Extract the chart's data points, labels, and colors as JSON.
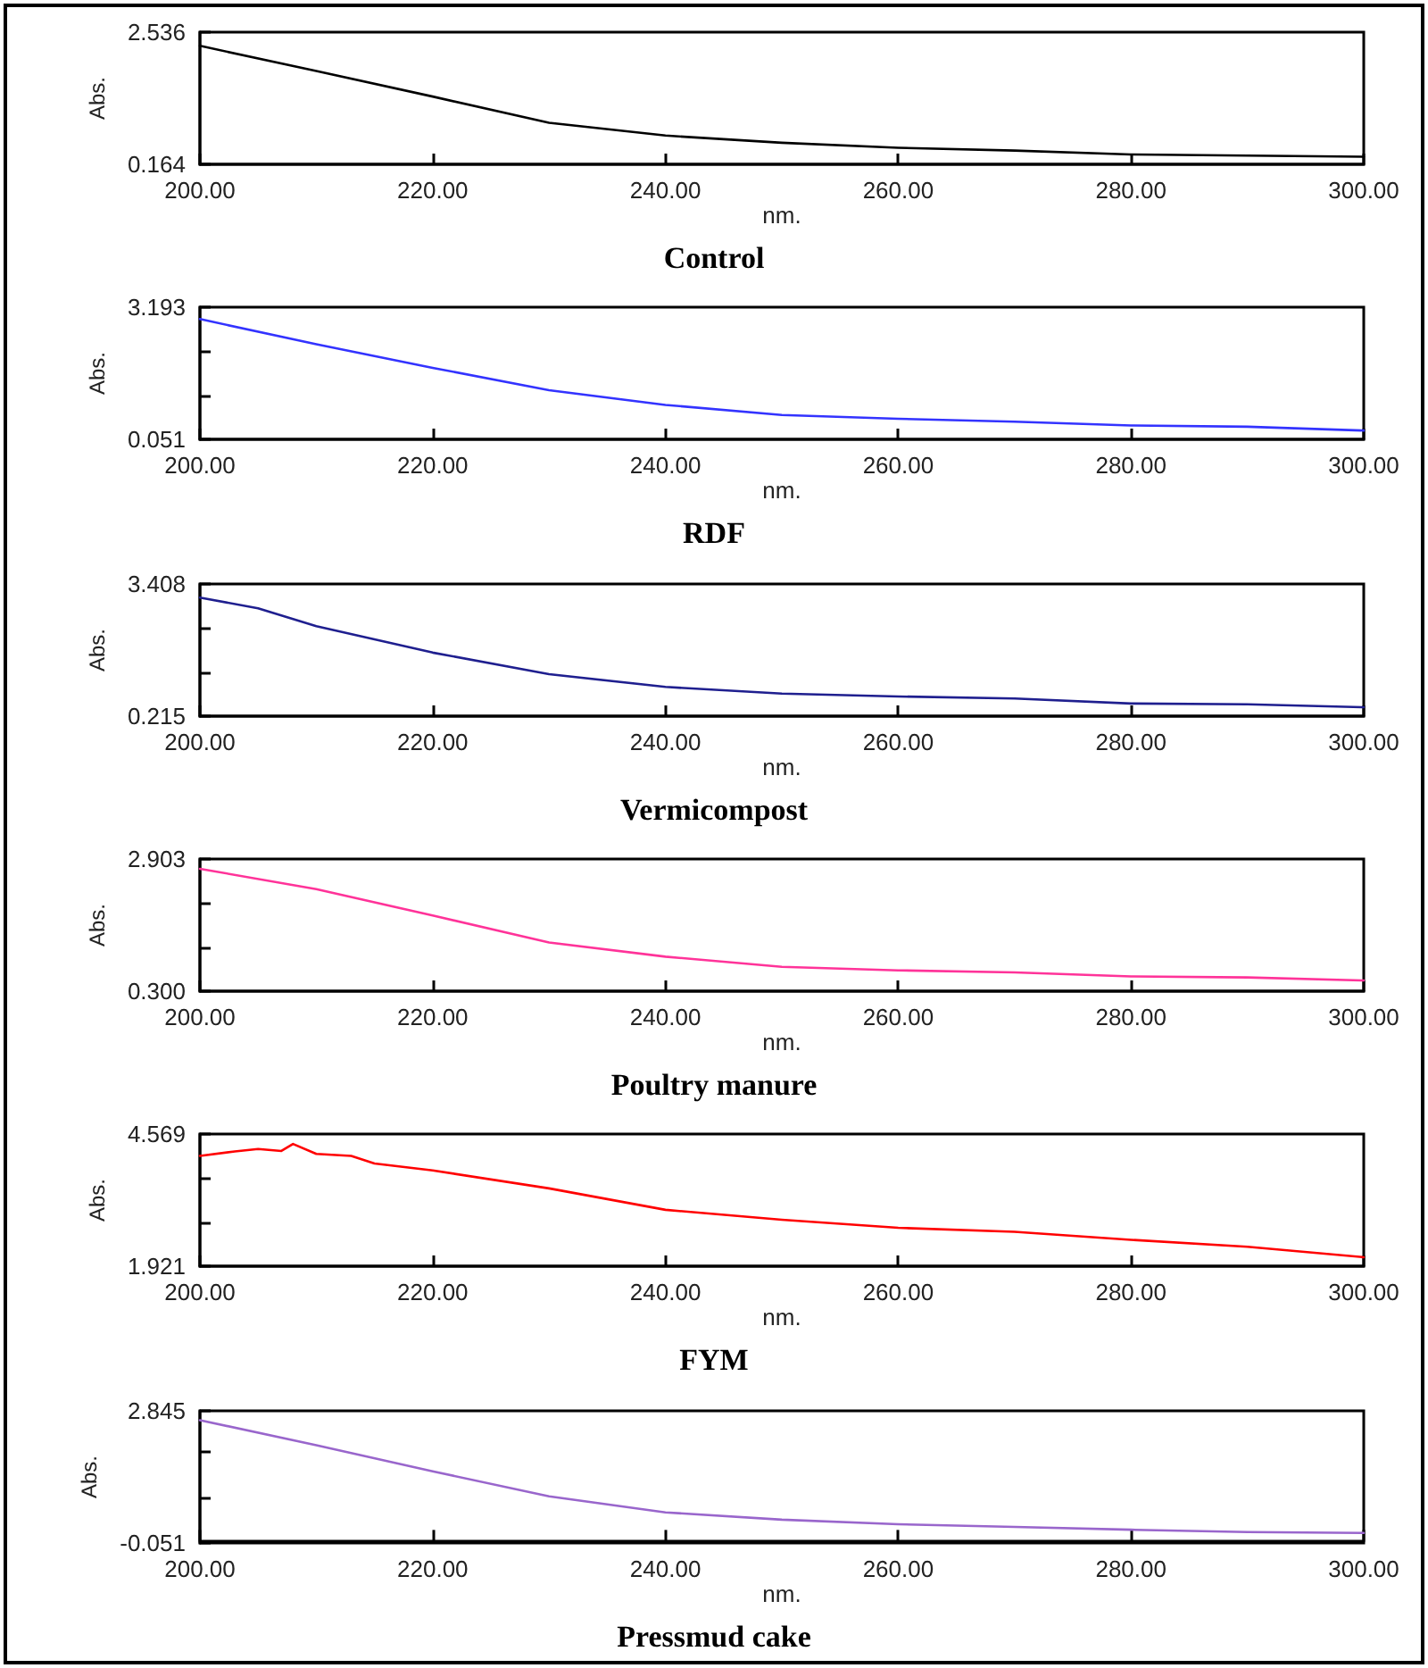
{
  "chart_data": [
    {
      "type": "line",
      "title": "Control",
      "xlabel": "nm.",
      "ylabel": "Abs.",
      "xlim": [
        200,
        300
      ],
      "xticks": [
        {
          "value": 200,
          "label": "200.00"
        },
        {
          "value": 220,
          "label": "220.00"
        },
        {
          "value": 240,
          "label": "240.00"
        },
        {
          "value": 260,
          "label": "260.00"
        },
        {
          "value": 280,
          "label": "280.00"
        },
        {
          "value": 300,
          "label": "300.00"
        }
      ],
      "ylim": [
        0.164,
        2.536
      ],
      "yticks": [
        0.164,
        2.536
      ],
      "grid": false,
      "x": [
        200,
        210,
        220,
        230,
        240,
        250,
        260,
        270,
        280,
        290,
        300
      ],
      "series": [
        {
          "color": "#000000",
          "values": [
            2.29,
            1.84,
            1.38,
            0.91,
            0.68,
            0.55,
            0.46,
            0.41,
            0.34,
            0.32,
            0.3
          ]
        }
      ]
    },
    {
      "type": "line",
      "title": "RDF",
      "xlabel": "nm.",
      "ylabel": "Abs.",
      "xlim": [
        200,
        300
      ],
      "xticks": [
        {
          "value": 200,
          "label": "200.00"
        },
        {
          "value": 220,
          "label": "220.00"
        },
        {
          "value": 240,
          "label": "240.00"
        },
        {
          "value": 260,
          "label": "260.00"
        },
        {
          "value": 280,
          "label": "280.00"
        },
        {
          "value": 300,
          "label": "300.00"
        }
      ],
      "ylim": [
        0.051,
        3.193
      ],
      "yticks": [
        0.051,
        {
          "value": 1.1,
          "label": null
        },
        {
          "value": 2.15,
          "label": null
        },
        3.193
      ],
      "grid": false,
      "x": [
        200,
        210,
        220,
        230,
        240,
        250,
        260,
        270,
        280,
        290,
        300
      ],
      "series": [
        {
          "color": "#3333ff",
          "values": [
            2.91,
            2.31,
            1.75,
            1.22,
            0.87,
            0.63,
            0.54,
            0.47,
            0.38,
            0.35,
            0.26
          ]
        }
      ]
    },
    {
      "type": "line",
      "title": "Vermicompost",
      "xlabel": "nm.",
      "ylabel": "Abs.",
      "xlim": [
        200,
        300
      ],
      "xticks": [
        {
          "value": 200,
          "label": "200.00"
        },
        {
          "value": 220,
          "label": "220.00"
        },
        {
          "value": 240,
          "label": "240.00"
        },
        {
          "value": 260,
          "label": "260.00"
        },
        {
          "value": 280,
          "label": "280.00"
        },
        {
          "value": 300,
          "label": "300.00"
        }
      ],
      "ylim": [
        0.215,
        3.408
      ],
      "yticks": [
        0.215,
        {
          "value": 1.28,
          "label": null
        },
        {
          "value": 2.34,
          "label": null
        },
        3.408
      ],
      "grid": false,
      "x": [
        200,
        205,
        210,
        220,
        230,
        240,
        250,
        260,
        270,
        280,
        290,
        300
      ],
      "series": [
        {
          "color": "#1f1f8f",
          "values": [
            3.08,
            2.82,
            2.39,
            1.75,
            1.23,
            0.92,
            0.76,
            0.69,
            0.64,
            0.52,
            0.5,
            0.43
          ]
        }
      ]
    },
    {
      "type": "line",
      "title": "Poultry manure",
      "xlabel": "nm.",
      "ylabel": "Abs.",
      "xlim": [
        200,
        300
      ],
      "xticks": [
        {
          "value": 200,
          "label": "200.00"
        },
        {
          "value": 220,
          "label": "220.00"
        },
        {
          "value": 240,
          "label": "240.00"
        },
        {
          "value": 260,
          "label": "260.00"
        },
        {
          "value": 280,
          "label": "280.00"
        },
        {
          "value": 300,
          "label": "300.00"
        }
      ],
      "ylim": [
        0.3,
        2.903
      ],
      "yticks": [
        {
          "value": 0.3,
          "label": "0.300"
        },
        {
          "value": 1.17,
          "label": null
        },
        {
          "value": 2.04,
          "label": null
        },
        2.903
      ],
      "grid": false,
      "x": [
        200,
        210,
        220,
        230,
        240,
        250,
        260,
        270,
        280,
        290,
        300
      ],
      "series": [
        {
          "color": "#ff3399",
          "values": [
            2.71,
            2.31,
            1.79,
            1.26,
            0.98,
            0.78,
            0.71,
            0.67,
            0.59,
            0.57,
            0.51
          ]
        }
      ]
    },
    {
      "type": "line",
      "title": "FYM",
      "xlabel": "nm.",
      "ylabel": "Abs.",
      "xlim": [
        200,
        300
      ],
      "xticks": [
        {
          "value": 200,
          "label": "200.00"
        },
        {
          "value": 220,
          "label": "220.00"
        },
        {
          "value": 240,
          "label": "240.00"
        },
        {
          "value": 260,
          "label": "260.00"
        },
        {
          "value": 280,
          "label": "280.00"
        },
        {
          "value": 300,
          "label": "300.00"
        }
      ],
      "ylim": [
        1.921,
        4.569
      ],
      "yticks": [
        1.921,
        {
          "value": 2.8,
          "label": null
        },
        {
          "value": 3.69,
          "label": null
        },
        4.569
      ],
      "grid": false,
      "x": [
        200,
        203,
        205,
        207,
        208,
        210,
        213,
        215,
        220,
        230,
        240,
        250,
        260,
        270,
        280,
        290,
        300
      ],
      "series": [
        {
          "color": "#ff0000",
          "values": [
            4.13,
            4.22,
            4.27,
            4.23,
            4.37,
            4.17,
            4.13,
            3.98,
            3.84,
            3.48,
            3.05,
            2.85,
            2.69,
            2.61,
            2.45,
            2.31,
            2.1
          ]
        }
      ]
    },
    {
      "type": "line",
      "title": "Pressmud cake",
      "xlabel": "nm.",
      "ylabel": "Abs.",
      "xlim": [
        200,
        300
      ],
      "xticks": [
        {
          "value": 200,
          "label": "200.00"
        },
        {
          "value": 220,
          "label": "220.00"
        },
        {
          "value": 240,
          "label": "240.00"
        },
        {
          "value": 260,
          "label": "260.00"
        },
        {
          "value": 280,
          "label": "280.00"
        },
        {
          "value": 300,
          "label": "300.00"
        }
      ],
      "ylim": [
        -0.051,
        2.845
      ],
      "yticks": [
        -0.051,
        {
          "value": 0.95,
          "label": null
        },
        {
          "value": 1.95,
          "label": null
        },
        2.845
      ],
      "grid": false,
      "x": [
        200,
        210,
        220,
        230,
        240,
        250,
        260,
        270,
        280,
        290,
        300
      ],
      "series": [
        {
          "color": "#9966cc",
          "values": [
            2.64,
            2.09,
            1.52,
            0.97,
            0.62,
            0.46,
            0.36,
            0.3,
            0.24,
            0.19,
            0.17
          ]
        }
      ]
    }
  ]
}
